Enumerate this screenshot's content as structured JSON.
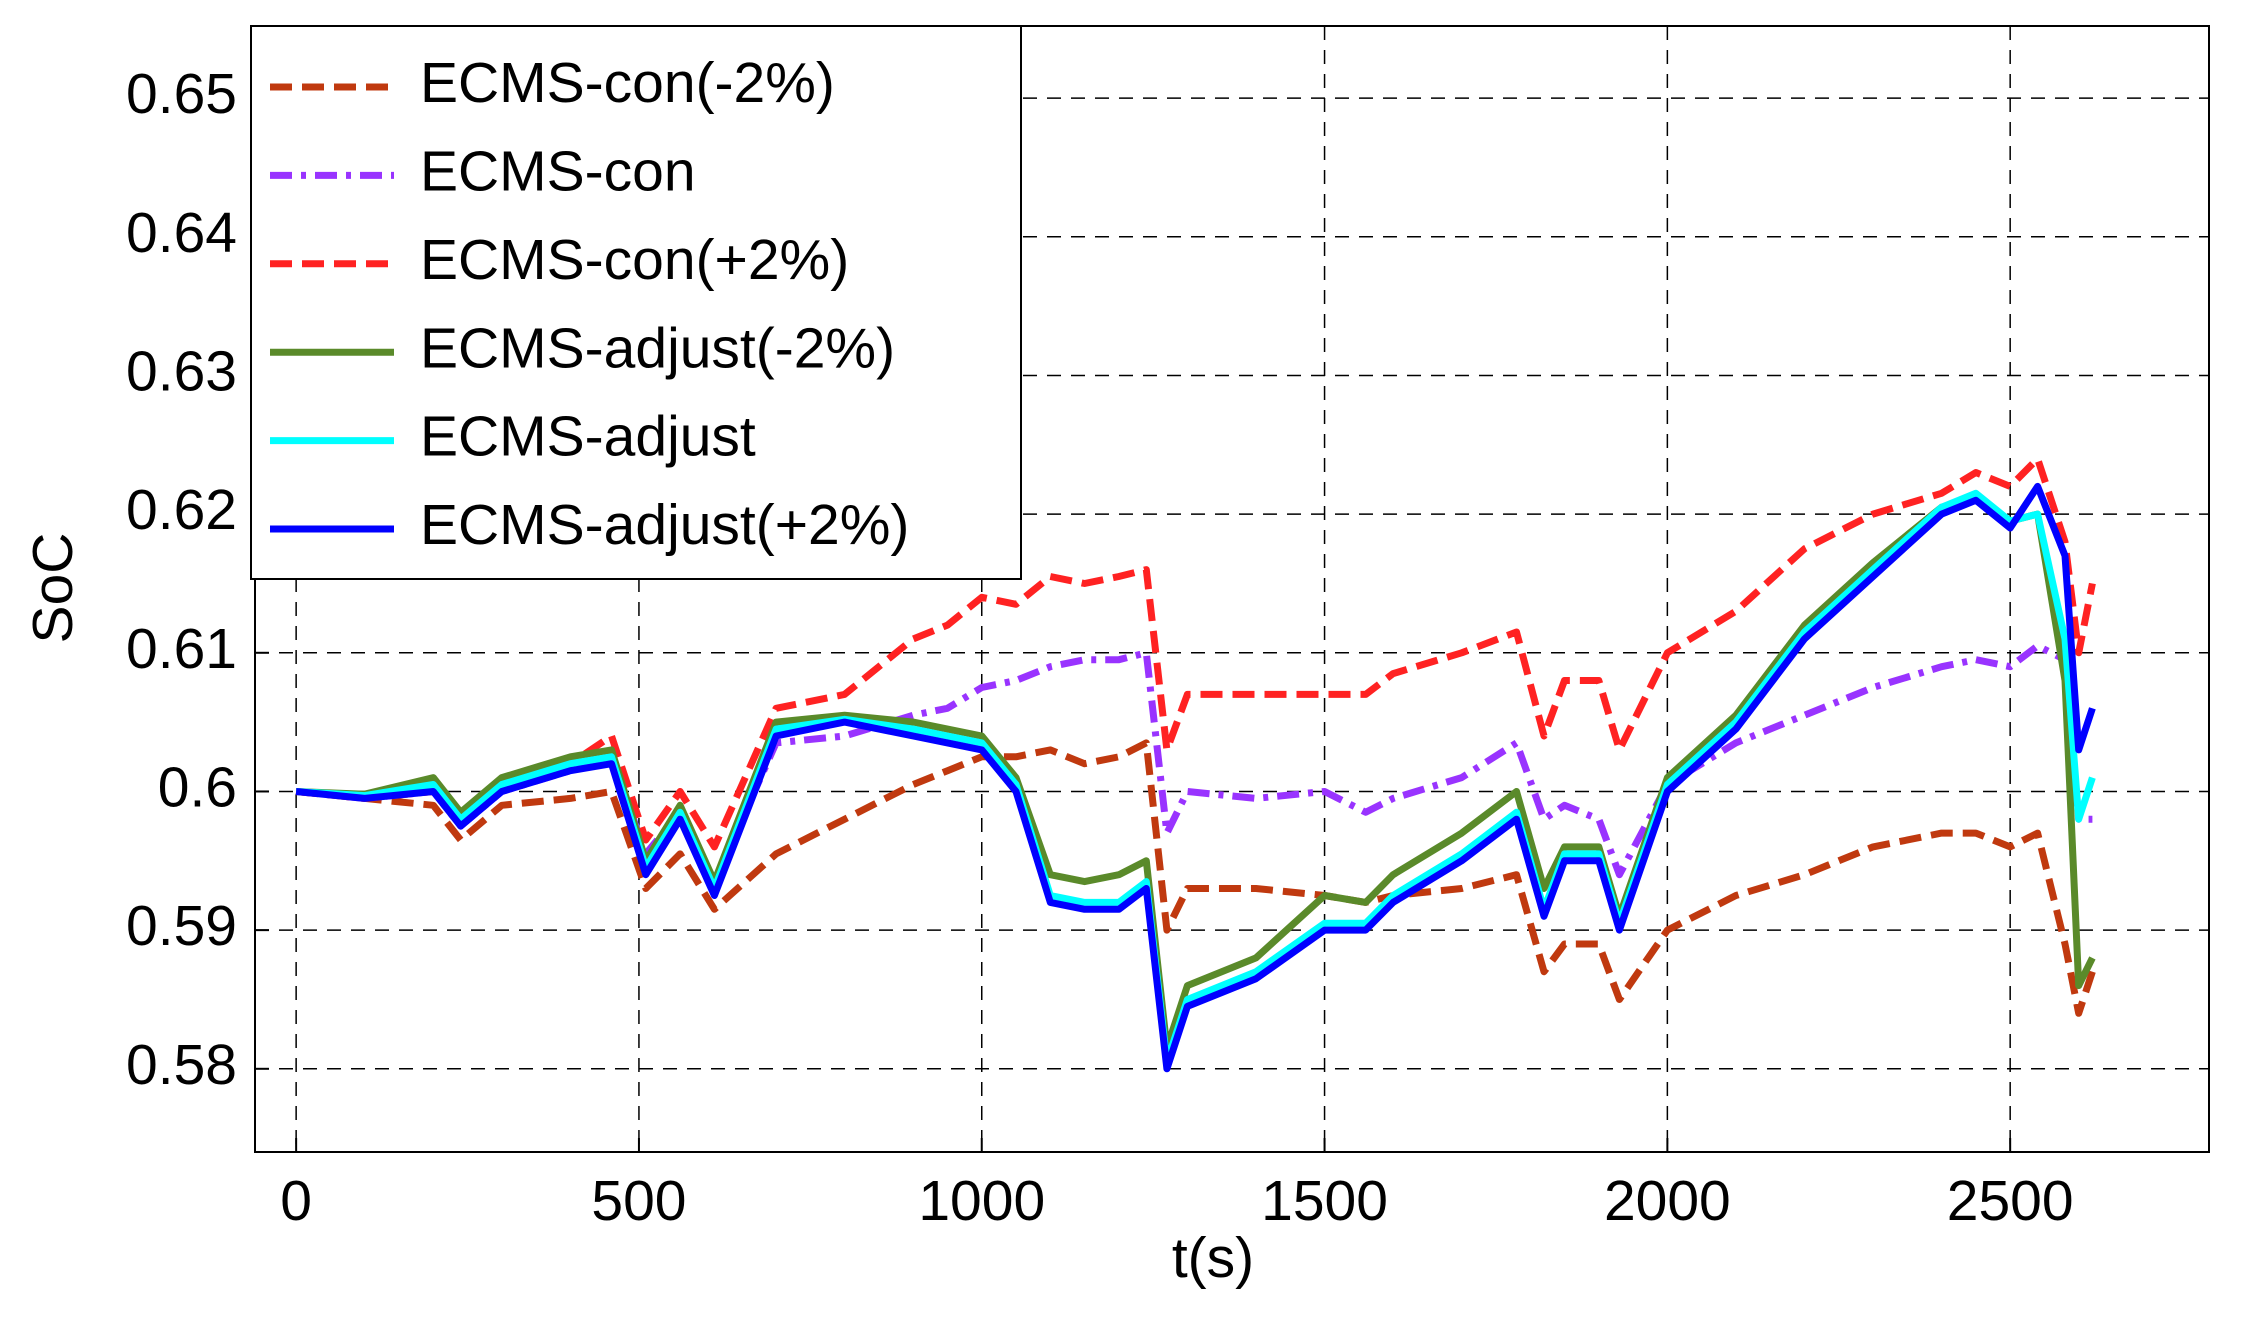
{
  "chart_data": {
    "type": "line",
    "xlabel": "t(s)",
    "ylabel": "SoC",
    "xlim": [
      -60,
      2790
    ],
    "ylim": [
      0.574,
      0.6552
    ],
    "xticks": [
      0,
      500,
      1000,
      1500,
      2000,
      2500
    ],
    "yticks": [
      0.58,
      0.59,
      0.6,
      0.61,
      0.62,
      0.63,
      0.64,
      0.65
    ],
    "grid": true,
    "legend": "upper left",
    "x": [
      0,
      100,
      200,
      240,
      300,
      400,
      460,
      510,
      560,
      610,
      700,
      800,
      900,
      950,
      1000,
      1050,
      1100,
      1150,
      1200,
      1240,
      1270,
      1300,
      1400,
      1500,
      1560,
      1600,
      1700,
      1780,
      1820,
      1850,
      1900,
      1930,
      2000,
      2100,
      2200,
      2300,
      2400,
      2450,
      2500,
      2540,
      2580,
      2600,
      2620
    ],
    "series": [
      {
        "name": "ECMS-con(-2%)",
        "color": "#c0390f",
        "dash": "dashed",
        "values": [
          0.6,
          0.5995,
          0.599,
          0.5965,
          0.599,
          0.5995,
          0.6,
          0.593,
          0.5955,
          0.5915,
          0.5955,
          0.598,
          0.6005,
          0.6015,
          0.6025,
          0.6025,
          0.603,
          0.602,
          0.6025,
          0.6035,
          0.59,
          0.593,
          0.593,
          0.5925,
          0.592,
          0.5925,
          0.593,
          0.594,
          0.587,
          0.589,
          0.589,
          0.585,
          0.59,
          0.5925,
          0.594,
          0.596,
          0.597,
          0.597,
          0.596,
          0.597,
          0.589,
          0.584,
          0.587
        ]
      },
      {
        "name": "ECMS-con",
        "color": "#9933ff",
        "dash": "dashdot",
        "values": [
          0.6,
          0.5995,
          0.6,
          0.5975,
          0.6,
          0.6015,
          0.6025,
          0.5955,
          0.5985,
          0.5935,
          0.6035,
          0.604,
          0.6055,
          0.606,
          0.6075,
          0.608,
          0.609,
          0.6095,
          0.6095,
          0.61,
          0.597,
          0.6,
          0.5995,
          0.6,
          0.5985,
          0.5995,
          0.601,
          0.6035,
          0.598,
          0.599,
          0.598,
          0.594,
          0.6005,
          0.6035,
          0.6055,
          0.6075,
          0.609,
          0.6095,
          0.609,
          0.6105,
          0.6095,
          0.598,
          0.598
        ]
      },
      {
        "name": "ECMS-con(+2%)",
        "color": "#ff2222",
        "dash": "dashed",
        "values": [
          0.6,
          0.5995,
          0.6,
          0.598,
          0.6005,
          0.602,
          0.604,
          0.5965,
          0.6,
          0.596,
          0.606,
          0.607,
          0.611,
          0.612,
          0.614,
          0.6135,
          0.6155,
          0.615,
          0.6155,
          0.616,
          0.603,
          0.607,
          0.607,
          0.607,
          0.607,
          0.6085,
          0.61,
          0.6115,
          0.604,
          0.608,
          0.608,
          0.603,
          0.61,
          0.613,
          0.6175,
          0.62,
          0.6215,
          0.623,
          0.622,
          0.624,
          0.618,
          0.61,
          0.615
        ]
      },
      {
        "name": "ECMS-adjust(-2%)",
        "color": "#5a8a2a",
        "dash": "solid",
        "values": [
          0.6,
          0.5998,
          0.601,
          0.5985,
          0.601,
          0.6025,
          0.603,
          0.595,
          0.599,
          0.5935,
          0.605,
          0.6055,
          0.605,
          0.6045,
          0.604,
          0.601,
          0.594,
          0.5935,
          0.594,
          0.595,
          0.5815,
          0.586,
          0.588,
          0.5925,
          0.592,
          0.594,
          0.597,
          0.6,
          0.593,
          0.596,
          0.596,
          0.591,
          0.601,
          0.6055,
          0.612,
          0.6165,
          0.6205,
          0.621,
          0.6195,
          0.62,
          0.608,
          0.586,
          0.588
        ]
      },
      {
        "name": "ECMS-adjust",
        "color": "#00ffff",
        "dash": "solid",
        "values": [
          0.6,
          0.5997,
          0.6005,
          0.598,
          0.6005,
          0.602,
          0.6025,
          0.5945,
          0.5985,
          0.593,
          0.6045,
          0.6052,
          0.6045,
          0.604,
          0.6035,
          0.6005,
          0.5925,
          0.592,
          0.592,
          0.5935,
          0.5805,
          0.585,
          0.587,
          0.5905,
          0.5905,
          0.5925,
          0.5955,
          0.5985,
          0.5915,
          0.5955,
          0.5955,
          0.5905,
          0.6005,
          0.605,
          0.6115,
          0.616,
          0.6205,
          0.6215,
          0.6195,
          0.62,
          0.611,
          0.598,
          0.601
        ]
      },
      {
        "name": "ECMS-adjust(+2%)",
        "color": "#0000ff",
        "dash": "solid",
        "values": [
          0.6,
          0.5995,
          0.6,
          0.5975,
          0.6,
          0.6015,
          0.602,
          0.594,
          0.598,
          0.5925,
          0.604,
          0.605,
          0.604,
          0.6035,
          0.603,
          0.6,
          0.592,
          0.5915,
          0.5915,
          0.593,
          0.58,
          0.5845,
          0.5865,
          0.59,
          0.59,
          0.592,
          0.595,
          0.598,
          0.591,
          0.595,
          0.595,
          0.59,
          0.6,
          0.6045,
          0.611,
          0.6155,
          0.62,
          0.621,
          0.619,
          0.622,
          0.617,
          0.603,
          0.606
        ]
      }
    ]
  }
}
